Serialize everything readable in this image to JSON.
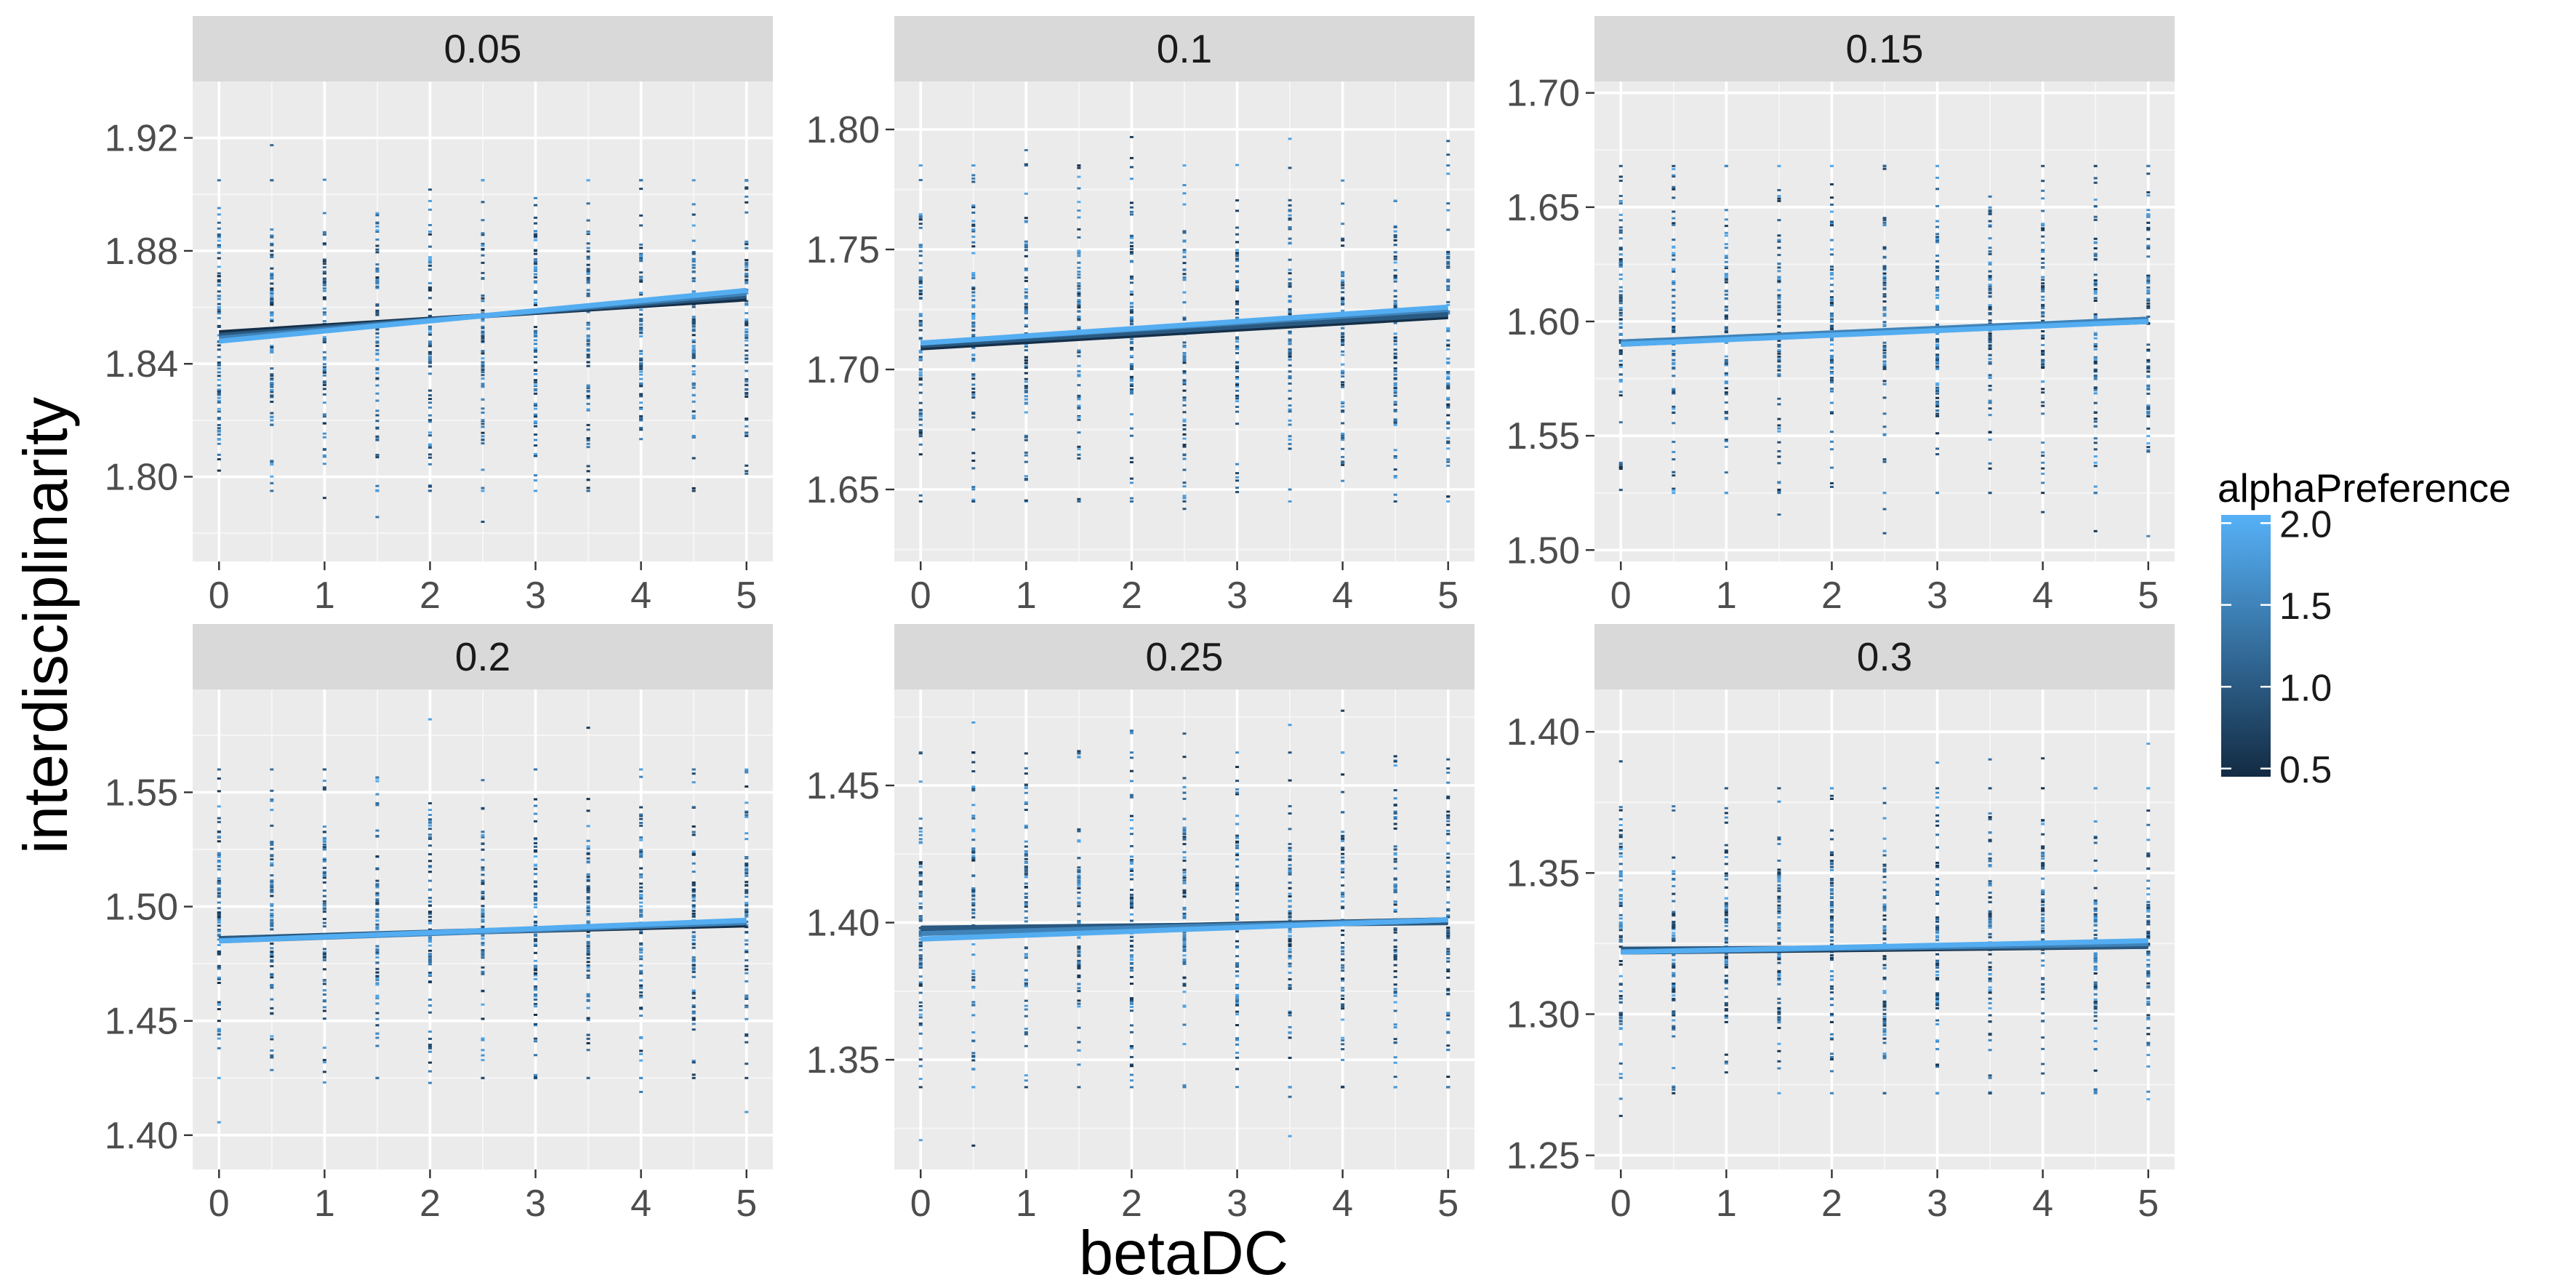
{
  "chart_data": {
    "type": "scatter",
    "x_label": "betaDC",
    "y_label": "interdisciplinarity",
    "x_ticks": [
      0,
      1,
      2,
      3,
      4,
      5
    ],
    "x_values": [
      0,
      0.5,
      1,
      1.5,
      2,
      2.5,
      3,
      3.5,
      4,
      4.5,
      5
    ],
    "x_range": [
      -0.25,
      5.25
    ],
    "legend": {
      "title": "alphaPreference",
      "ticks": [
        2.0,
        1.5,
        1.0,
        0.5
      ],
      "tick_labels": [
        "2.0",
        "1.5",
        "1.0",
        "0.5"
      ],
      "range": [
        0.45,
        2.05
      ],
      "color_low": "#132B43",
      "color_high": "#56B1F7",
      "placement": "right"
    },
    "panels": [
      {
        "facet": "0.05",
        "y_range": [
          1.77,
          1.94
        ],
        "y_ticks": [
          1.8,
          1.84,
          1.88,
          1.92
        ],
        "y_tick_labels": [
          "1.80",
          "1.84",
          "1.88",
          "1.92"
        ],
        "point_span": [
          1.795,
          1.905
        ],
        "point_outlier_span": [
          1.78,
          1.918
        ],
        "trend": [
          {
            "alpha": 0.5,
            "y0": 1.851,
            "y5": 1.863
          },
          {
            "alpha": 1.0,
            "y0": 1.85,
            "y5": 1.864
          },
          {
            "alpha": 1.5,
            "y0": 1.849,
            "y5": 1.865
          },
          {
            "alpha": 2.0,
            "y0": 1.848,
            "y5": 1.866
          }
        ]
      },
      {
        "facet": "0.1",
        "y_range": [
          1.62,
          1.82
        ],
        "y_ticks": [
          1.65,
          1.7,
          1.75,
          1.8
        ],
        "y_tick_labels": [
          "1.65",
          "1.70",
          "1.75",
          "1.80"
        ],
        "point_span": [
          1.645,
          1.785
        ],
        "point_outlier_span": [
          1.628,
          1.808
        ],
        "trend": [
          {
            "alpha": 0.5,
            "y0": 1.709,
            "y5": 1.722
          },
          {
            "alpha": 1.0,
            "y0": 1.71,
            "y5": 1.723
          },
          {
            "alpha": 1.5,
            "y0": 1.711,
            "y5": 1.725
          },
          {
            "alpha": 2.0,
            "y0": 1.711,
            "y5": 1.726
          }
        ]
      },
      {
        "facet": "0.15",
        "y_range": [
          1.495,
          1.705
        ],
        "y_ticks": [
          1.5,
          1.55,
          1.6,
          1.65,
          1.7
        ],
        "y_tick_labels": [
          "1.50",
          "1.55",
          "1.60",
          "1.65",
          "1.70"
        ],
        "point_span": [
          1.525,
          1.668
        ],
        "point_outlier_span": [
          1.505,
          1.69
        ],
        "trend": [
          {
            "alpha": 0.5,
            "y0": 1.59,
            "y5": 1.601
          },
          {
            "alpha": 1.0,
            "y0": 1.591,
            "y5": 1.6
          },
          {
            "alpha": 1.5,
            "y0": 1.591,
            "y5": 1.601
          },
          {
            "alpha": 2.0,
            "y0": 1.59,
            "y5": 1.6
          }
        ]
      },
      {
        "facet": "0.2",
        "y_range": [
          1.385,
          1.595
        ],
        "y_ticks": [
          1.4,
          1.45,
          1.5,
          1.55
        ],
        "y_tick_labels": [
          "1.40",
          "1.45",
          "1.50",
          "1.55"
        ],
        "point_span": [
          1.425,
          1.56
        ],
        "point_outlier_span": [
          1.392,
          1.582
        ],
        "trend": [
          {
            "alpha": 0.5,
            "y0": 1.486,
            "y5": 1.492
          },
          {
            "alpha": 1.0,
            "y0": 1.486,
            "y5": 1.493
          },
          {
            "alpha": 1.5,
            "y0": 1.485,
            "y5": 1.493
          },
          {
            "alpha": 2.0,
            "y0": 1.485,
            "y5": 1.494
          }
        ]
      },
      {
        "facet": "0.25",
        "y_range": [
          1.31,
          1.485
        ],
        "y_ticks": [
          1.35,
          1.4,
          1.45
        ],
        "y_tick_labels": [
          "1.35",
          "1.40",
          "1.45"
        ],
        "point_span": [
          1.34,
          1.462
        ],
        "point_outlier_span": [
          1.318,
          1.478
        ],
        "trend": [
          {
            "alpha": 0.5,
            "y0": 1.397,
            "y5": 1.401
          },
          {
            "alpha": 1.0,
            "y0": 1.398,
            "y5": 1.4
          },
          {
            "alpha": 1.5,
            "y0": 1.396,
            "y5": 1.401
          },
          {
            "alpha": 2.0,
            "y0": 1.394,
            "y5": 1.401
          }
        ]
      },
      {
        "facet": "0.3",
        "y_range": [
          1.245,
          1.415
        ],
        "y_ticks": [
          1.25,
          1.3,
          1.35,
          1.4
        ],
        "y_tick_labels": [
          "1.25",
          "1.30",
          "1.35",
          "1.40"
        ],
        "point_span": [
          1.272,
          1.38
        ],
        "point_outlier_span": [
          1.255,
          1.396
        ],
        "trend": [
          {
            "alpha": 0.5,
            "y0": 1.322,
            "y5": 1.324
          },
          {
            "alpha": 1.0,
            "y0": 1.323,
            "y5": 1.324
          },
          {
            "alpha": 1.5,
            "y0": 1.322,
            "y5": 1.325
          },
          {
            "alpha": 2.0,
            "y0": 1.322,
            "y5": 1.326
          }
        ]
      }
    ]
  }
}
